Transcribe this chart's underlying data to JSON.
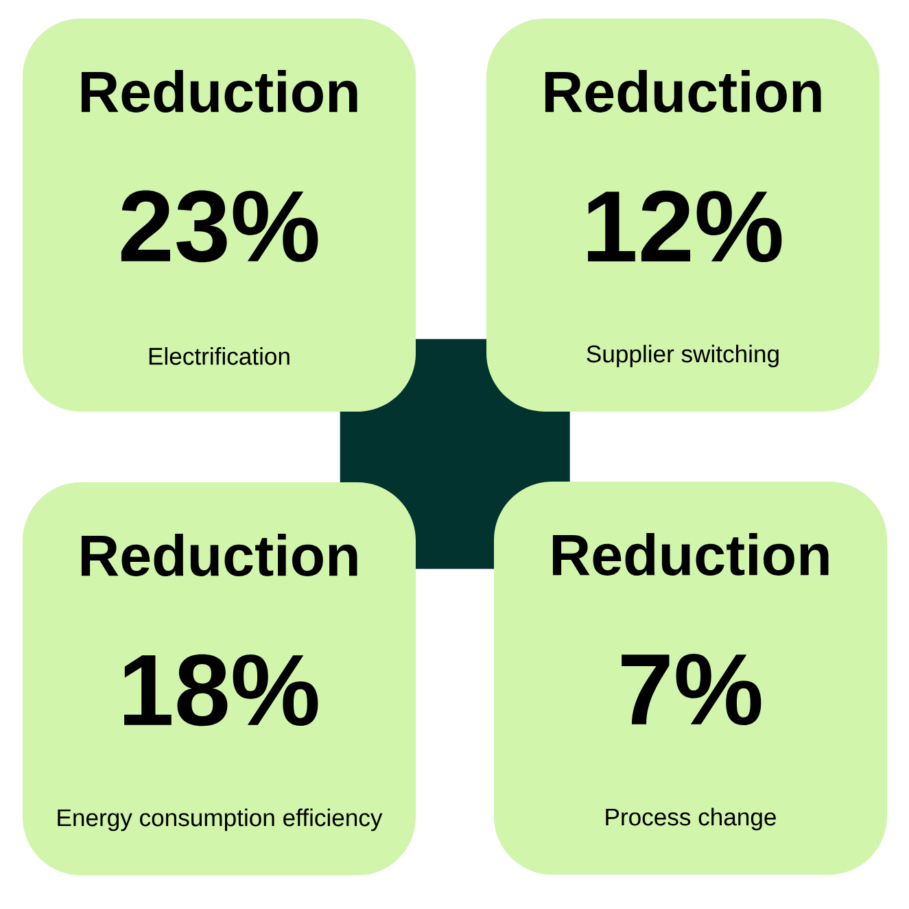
{
  "chart_data": {
    "type": "other",
    "categories": [
      "Electrification",
      "Supplier switching",
      "Energy consumption efficiency",
      "Process change"
    ],
    "values": [
      23,
      12,
      18,
      7
    ],
    "data_labels": true,
    "ylabel": "%",
    "annotations": [
      "Reduction",
      "Reduction",
      "Reduction",
      "Reduction"
    ],
    "colors": [
      "#d1f5ab",
      "#d1f5ab",
      "#d1f5ab",
      "#d1f5ab"
    ]
  }
}
